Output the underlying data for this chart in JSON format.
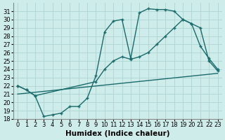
{
  "xlabel": "Humidex (Indice chaleur)",
  "background_color": "#ceecea",
  "grid_color": "#aed4d2",
  "line_color": "#1a6b6b",
  "xlim": [
    -0.5,
    23.5
  ],
  "ylim": [
    18,
    32
  ],
  "xticks": [
    0,
    1,
    2,
    3,
    4,
    5,
    6,
    7,
    8,
    9,
    10,
    11,
    12,
    13,
    14,
    15,
    16,
    17,
    18,
    19,
    20,
    21,
    22,
    23
  ],
  "yticks": [
    18,
    19,
    20,
    21,
    22,
    23,
    24,
    25,
    26,
    27,
    28,
    29,
    30,
    31
  ],
  "line1_x": [
    0,
    1,
    2,
    3,
    4,
    5,
    6,
    7,
    8,
    9,
    10,
    11,
    12,
    13,
    14,
    15,
    16,
    17,
    18,
    19,
    20,
    21,
    22,
    23
  ],
  "line1_y": [
    22.0,
    21.5,
    20.8,
    18.3,
    18.5,
    18.7,
    19.5,
    19.5,
    20.5,
    23.2,
    28.5,
    29.8,
    30.0,
    25.3,
    30.8,
    31.3,
    31.2,
    31.2,
    31.0,
    30.0,
    29.5,
    26.8,
    25.3,
    24.0
  ],
  "line2_x": [
    0,
    1,
    2,
    9,
    10,
    11,
    12,
    13,
    14,
    15,
    16,
    17,
    18,
    19,
    20,
    21,
    22,
    23
  ],
  "line2_y": [
    22.0,
    21.5,
    20.8,
    22.5,
    24.0,
    25.0,
    25.5,
    25.2,
    25.5,
    26.0,
    27.0,
    28.0,
    29.0,
    30.0,
    29.5,
    29.0,
    25.0,
    23.8
  ],
  "line3_x": [
    0,
    23
  ],
  "line3_y": [
    21.0,
    23.5
  ],
  "marker": "+",
  "markersize": 3,
  "linewidth": 1.0,
  "tick_fontsize": 6.0,
  "xlabel_fontsize": 7.5
}
